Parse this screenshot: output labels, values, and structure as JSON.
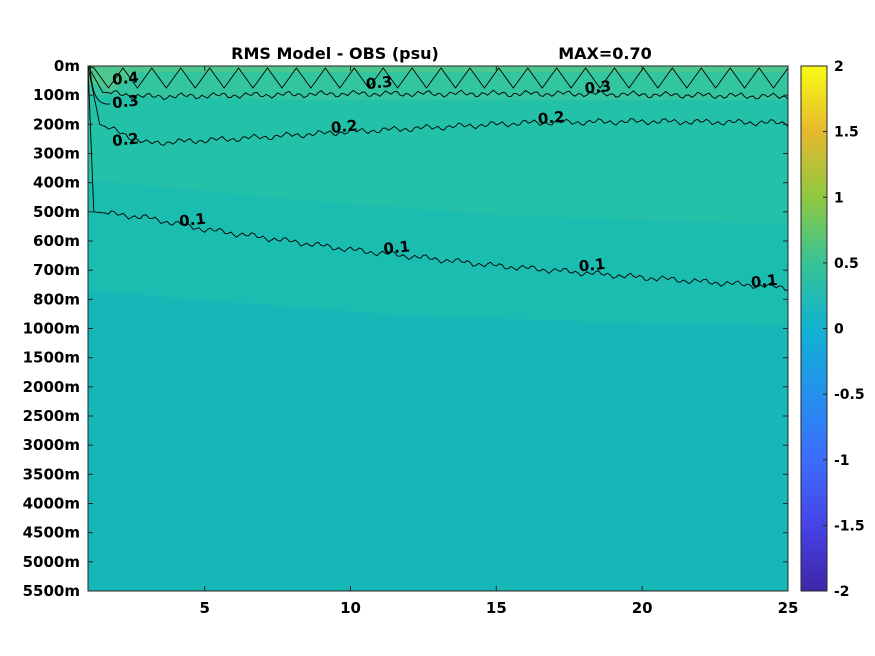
{
  "title": "RMS Model - OBS (psu)",
  "max_label": "MAX=0.70",
  "chart_data": {
    "type": "heatmap",
    "title": "RMS Model - OBS (psu)",
    "annotation": "MAX=0.70",
    "x_ticks": [
      "5",
      "10",
      "15",
      "20",
      "25"
    ],
    "x_tick_values": [
      5,
      10,
      15,
      20,
      25
    ],
    "xlim": [
      1,
      25
    ],
    "y_ticks": [
      "0m",
      "100m",
      "200m",
      "300m",
      "400m",
      "500m",
      "600m",
      "700m",
      "800m",
      "1000m",
      "1500m",
      "2000m",
      "2500m",
      "3000m",
      "3500m",
      "4000m",
      "4500m",
      "5000m",
      "5500m"
    ],
    "y_reversed": true,
    "colorbar": {
      "min": -2,
      "max": 2,
      "ticks": [
        "2",
        "1.5",
        "1",
        "0.5",
        "0",
        "-0.5",
        "-1",
        "-1.5",
        "-2"
      ],
      "tick_values": [
        2,
        1.5,
        1,
        0.5,
        0,
        -0.5,
        -1,
        -1.5,
        -2
      ],
      "colormap": "parula"
    },
    "contours": [
      {
        "level": 0.4,
        "label": "0.4",
        "depths": [
          [
            1,
            "0m"
          ],
          [
            1.3,
            "50m"
          ],
          [
            25,
            "0m"
          ]
        ]
      },
      {
        "level": 0.3,
        "label": "0.3",
        "depths": [
          [
            1,
            "0m"
          ],
          [
            1.5,
            "90m"
          ],
          [
            3,
            "105m"
          ],
          [
            10,
            "95m"
          ],
          [
            18,
            "95m"
          ],
          [
            25,
            "105m"
          ]
        ]
      },
      {
        "level": 0.2,
        "label": "0.2",
        "depths": [
          [
            1,
            "0m"
          ],
          [
            1.4,
            "200m"
          ],
          [
            3,
            "265m"
          ],
          [
            6,
            "250m"
          ],
          [
            10,
            "225m"
          ],
          [
            16,
            "195m"
          ],
          [
            20,
            "190m"
          ],
          [
            25,
            "195m"
          ]
        ]
      },
      {
        "level": 0.1,
        "label": "0.1",
        "depths": [
          [
            1,
            "0m"
          ],
          [
            1.2,
            "500m"
          ],
          [
            3,
            "520m"
          ],
          [
            5,
            "560m"
          ],
          [
            10,
            "630m"
          ],
          [
            15,
            "685m"
          ],
          [
            20,
            "725m"
          ],
          [
            25,
            "760m"
          ]
        ]
      }
    ],
    "contour_labels": [
      {
        "text": "0.4",
        "x": 2.3,
        "depth": "60m"
      },
      {
        "text": "0.3",
        "x": 2.3,
        "depth": "140m"
      },
      {
        "text": "0.3",
        "x": 11.0,
        "depth": "75m"
      },
      {
        "text": "0.3",
        "x": 18.5,
        "depth": "90m"
      },
      {
        "text": "0.2",
        "x": 2.3,
        "depth": "270m"
      },
      {
        "text": "0.2",
        "x": 9.8,
        "depth": "225m"
      },
      {
        "text": "0.2",
        "x": 16.9,
        "depth": "195m"
      },
      {
        "text": "0.1",
        "x": 4.6,
        "depth": "545m"
      },
      {
        "text": "0.1",
        "x": 11.6,
        "depth": "640m"
      },
      {
        "text": "0.1",
        "x": 18.3,
        "depth": "700m"
      },
      {
        "text": "0.1",
        "x": 24.2,
        "depth": "755m"
      }
    ]
  }
}
